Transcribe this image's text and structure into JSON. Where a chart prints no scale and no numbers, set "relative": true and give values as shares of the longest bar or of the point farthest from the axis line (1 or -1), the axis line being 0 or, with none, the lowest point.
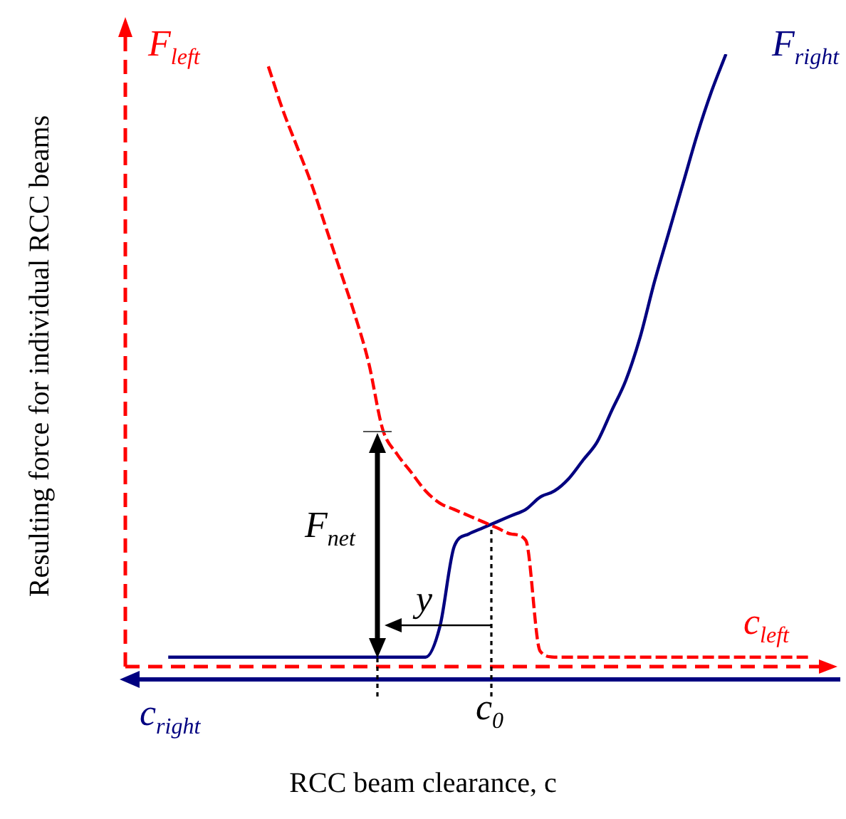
{
  "chart_data": {
    "type": "line",
    "relative": true,
    "marker": "none",
    "xlabel": "RCC beam clearance, c",
    "ylabel": "Resulting force for individual RCC beams",
    "categories": [
      null,
      null,
      null,
      null,
      null,
      null,
      null,
      null,
      null,
      null,
      null,
      null,
      null,
      null,
      null,
      null,
      null,
      null,
      null,
      null,
      null,
      null,
      null,
      null,
      null,
      null,
      null,
      null,
      null,
      null,
      null,
      null,
      null,
      null,
      null,
      null,
      null,
      null,
      null,
      null,
      null,
      null,
      null,
      null,
      null,
      null,
      null,
      null,
      null,
      null
    ],
    "series": [
      {
        "name": "F$_{left}$",
        "color": "#ff0000",
        "line_style": "dashed",
        "values": [
          null,
          null,
          null,
          null,
          null,
          null,
          null,
          null,
          null,
          null,
          0.98,
          0.91,
          0.85,
          0.79,
          0.72,
          0.65,
          0.58,
          0.5,
          0.39,
          0.35,
          0.32,
          0.29,
          0.27,
          0.26,
          0.25,
          0.24,
          0.23,
          0.22,
          0.21,
          0.03,
          0.02,
          0.02,
          0.02,
          0.02,
          0.02,
          0.02,
          0.02,
          0.02,
          0.02,
          0.02,
          0.02,
          0.02,
          0.02,
          0.02,
          0.02,
          0.02,
          0.02,
          0.02,
          0.02,
          null
        ]
      },
      {
        "name": "F$_{right}$",
        "color": "#000080",
        "line_style": "solid",
        "values": [
          null,
          null,
          null,
          0.02,
          0.02,
          0.02,
          0.02,
          0.02,
          0.02,
          0.02,
          0.02,
          0.02,
          0.02,
          0.02,
          0.02,
          0.02,
          0.02,
          0.02,
          0.02,
          0.02,
          0.02,
          0.02,
          0.07,
          0.2,
          0.22,
          0.23,
          0.24,
          0.25,
          0.26,
          0.28,
          0.29,
          0.31,
          0.34,
          0.37,
          0.42,
          0.47,
          0.54,
          0.63,
          0.71,
          0.79,
          0.87,
          0.94,
          1.0,
          null,
          null,
          null,
          null,
          null,
          null,
          null
        ]
      }
    ],
    "annotations": [
      "c$_{left}$",
      "c$_{right}$",
      "c$_{0}$",
      "F$_{net}$",
      "y"
    ]
  }
}
